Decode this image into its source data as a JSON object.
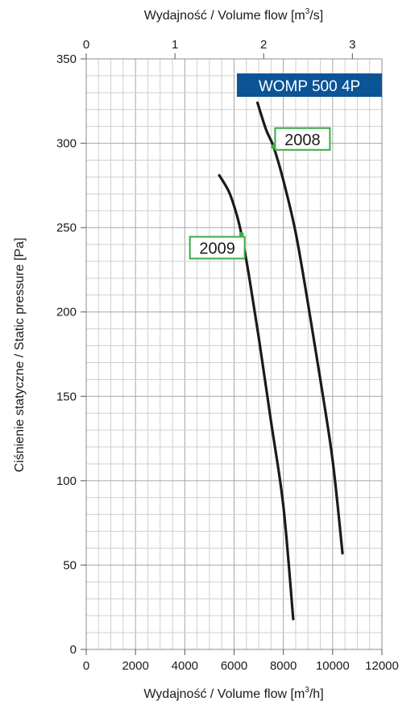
{
  "chart_data": {
    "type": "line",
    "model_label": "WOMP 500 4P",
    "colors": {
      "model_badge": "#0b5496",
      "curve": "#1a1a1a",
      "label_border": "#3aaa47",
      "label_dot": "#3aaa47",
      "grid_major": "#a6a6a6",
      "grid_minor": "#cfcfcf"
    },
    "x_bottom": {
      "label_main": "Wydajność / Volume flow [m",
      "label_sup": "3",
      "label_end": "/h]",
      "range": [
        0,
        12000
      ],
      "ticks": [
        "0",
        "2000",
        "4000",
        "6000",
        "8000",
        "10000",
        "12000"
      ]
    },
    "x_top": {
      "label_main": "Wydajność / Volume flow [m",
      "label_sup": "3",
      "label_end": "/s]",
      "range": [
        0,
        3.333
      ],
      "ticks": [
        "0",
        "1",
        "2",
        "3"
      ],
      "tick_values": [
        0,
        1,
        2,
        3
      ]
    },
    "y": {
      "label": "Ciśnienie statyczne / Static pressure [Pa]",
      "range": [
        0,
        350
      ],
      "ticks": [
        "0",
        "50",
        "100",
        "150",
        "200",
        "250",
        "300",
        "350"
      ]
    },
    "grid": true,
    "series": [
      {
        "name": "2008",
        "points": [
          [
            6950,
            324
          ],
          [
            7300,
            308
          ],
          [
            7600,
            298
          ],
          [
            8000,
            278
          ],
          [
            8500,
            247
          ],
          [
            9000,
            205
          ],
          [
            9500,
            160
          ],
          [
            10000,
            112
          ],
          [
            10400,
            57
          ]
        ],
        "marker": [
          7600,
          298
        ]
      },
      {
        "name": "2009",
        "points": [
          [
            5400,
            281
          ],
          [
            5800,
            271
          ],
          [
            6100,
            258
          ],
          [
            6300,
            246
          ],
          [
            6600,
            222
          ],
          [
            7000,
            185
          ],
          [
            7500,
            135
          ],
          [
            8000,
            85
          ],
          [
            8400,
            18
          ]
        ],
        "marker": [
          6300,
          246
        ]
      }
    ]
  }
}
